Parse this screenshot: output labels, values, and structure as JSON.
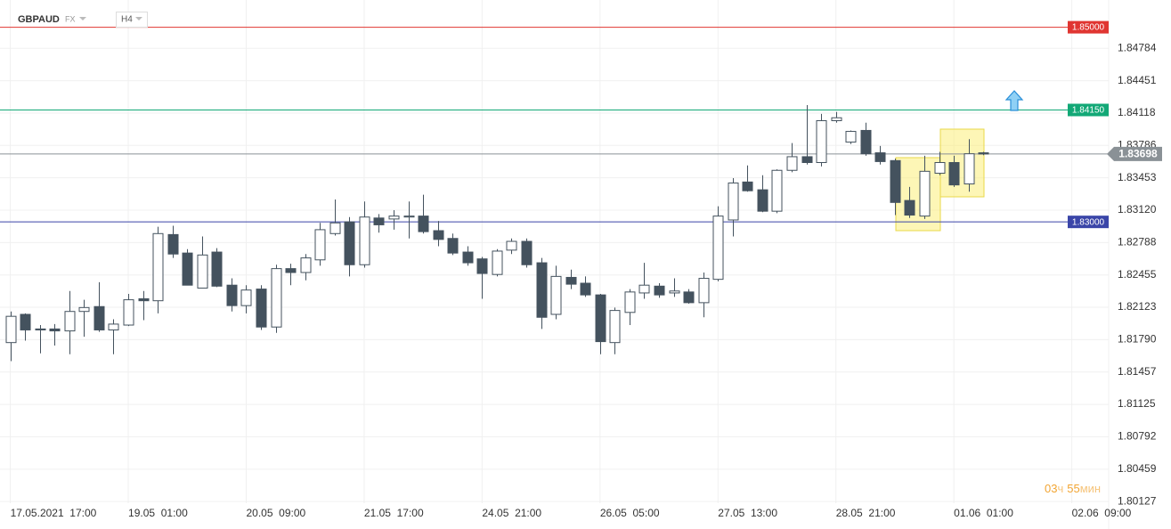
{
  "header": {
    "symbol": "GBPAUD",
    "market": "FX",
    "timeframe": "H4"
  },
  "timer": {
    "hours": "03",
    "hours_unit": "ч",
    "minutes": "55",
    "minutes_unit": "мин"
  },
  "chart_data": {
    "type": "candlestick",
    "up_color": "#ffffff",
    "down_color": "#44525e",
    "edge_color": "#44525e",
    "open": [
      1.8176,
      1.8205,
      1.819,
      1.819,
      1.8188,
      1.8208,
      1.8213,
      1.8189,
      1.8194,
      1.8221,
      1.8219,
      1.8287,
      1.8268,
      1.8232,
      1.8269,
      1.8235,
      1.8214,
      1.8231,
      1.8192,
      1.8252,
      1.8248,
      1.8261,
      1.8288,
      1.83,
      1.8256,
      1.8304,
      1.8303,
      1.8305,
      1.8306,
      1.8291,
      1.8283,
      1.8269,
      1.8262,
      1.8246,
      1.8271,
      1.828,
      1.8258,
      1.8205,
      1.8243,
      1.8237,
      1.8225,
      1.8176,
      1.8207,
      1.8227,
      1.8234,
      1.8227,
      1.8228,
      1.8217,
      1.8241,
      1.8302,
      1.8341,
      1.8333,
      1.8311,
      1.8353,
      1.8367,
      1.8361,
      1.8404,
      1.8382,
      1.8394,
      1.8371,
      1.8363,
      1.8322,
      1.8306,
      1.835,
      1.8361,
      1.8339,
      1.8371
    ],
    "high": [
      1.8208,
      1.8206,
      1.8194,
      1.8195,
      1.8229,
      1.822,
      1.8238,
      1.82,
      1.8226,
      1.8229,
      1.8295,
      1.8296,
      1.8272,
      1.8285,
      1.8273,
      1.8242,
      1.8235,
      1.8235,
      1.8256,
      1.8257,
      1.8267,
      1.8299,
      1.8323,
      1.8305,
      1.8321,
      1.8308,
      1.8312,
      1.8321,
      1.8328,
      1.8301,
      1.8288,
      1.8275,
      1.8264,
      1.8272,
      1.8283,
      1.8283,
      1.8263,
      1.8255,
      1.8251,
      1.8244,
      1.8226,
      1.8212,
      1.8231,
      1.8258,
      1.8237,
      1.8242,
      1.8231,
      1.8248,
      1.8316,
      1.8345,
      1.8358,
      1.8348,
      1.8354,
      1.8381,
      1.842,
      1.8411,
      1.8413,
      1.8394,
      1.8402,
      1.8378,
      1.8365,
      1.8336,
      1.8368,
      1.8372,
      1.8368,
      1.8385,
      1.8372
    ],
    "low": [
      1.8157,
      1.8178,
      1.8165,
      1.8173,
      1.8164,
      1.8182,
      1.8187,
      1.8164,
      1.8193,
      1.8199,
      1.8206,
      1.8263,
      1.8235,
      1.8232,
      1.8233,
      1.8208,
      1.8206,
      1.8189,
      1.8186,
      1.8235,
      1.824,
      1.8255,
      1.8286,
      1.8244,
      1.8253,
      1.8289,
      1.8292,
      1.8283,
      1.8288,
      1.8275,
      1.8266,
      1.8255,
      1.8221,
      1.8244,
      1.8267,
      1.8253,
      1.819,
      1.82,
      1.8231,
      1.8223,
      1.8164,
      1.8164,
      1.8194,
      1.8221,
      1.8222,
      1.8223,
      1.8216,
      1.8202,
      1.8239,
      1.8285,
      1.8331,
      1.831,
      1.8309,
      1.8351,
      1.8359,
      1.8357,
      1.8402,
      1.838,
      1.8368,
      1.8359,
      1.8307,
      1.8304,
      1.8303,
      1.8348,
      1.8336,
      1.8331,
      1.83685
    ],
    "close": [
      1.8203,
      1.8189,
      1.8189,
      1.8188,
      1.8208,
      1.8212,
      1.8189,
      1.8195,
      1.822,
      1.8219,
      1.8288,
      1.8267,
      1.8235,
      1.8266,
      1.8234,
      1.8214,
      1.823,
      1.8192,
      1.8252,
      1.8248,
      1.8263,
      1.8292,
      1.8299,
      1.8256,
      1.8305,
      1.8297,
      1.8306,
      1.8306,
      1.829,
      1.8282,
      1.8268,
      1.8258,
      1.8247,
      1.827,
      1.828,
      1.8256,
      1.8202,
      1.8244,
      1.8236,
      1.8225,
      1.8177,
      1.8209,
      1.8228,
      1.8235,
      1.8225,
      1.8229,
      1.8217,
      1.8242,
      1.8306,
      1.834,
      1.8332,
      1.8311,
      1.8353,
      1.8367,
      1.8361,
      1.8404,
      1.8407,
      1.8393,
      1.837,
      1.8362,
      1.832,
      1.8307,
      1.8352,
      1.8361,
      1.8338,
      1.837,
      1.83698
    ],
    "xlim": [
      -0.7,
      74.5
    ],
    "xticks": [
      {
        "value": 0,
        "label": "17.05.2021  17:00"
      },
      {
        "value": 8,
        "label": "19.05  01:00"
      },
      {
        "value": 16,
        "label": "20.05  09:00"
      },
      {
        "value": 24,
        "label": "21.05  17:00"
      },
      {
        "value": 32,
        "label": "24.05  21:00"
      },
      {
        "value": 40,
        "label": "26.05  05:00"
      },
      {
        "value": 48,
        "label": "27.05  13:00"
      },
      {
        "value": 56,
        "label": "28.05  21:00"
      },
      {
        "value": 64,
        "label": "01.06  01:00"
      },
      {
        "value": 72,
        "label": "02.06  09:00"
      }
    ],
    "ylim": [
      1.8011,
      1.8528
    ],
    "yticks": [
      1.84784,
      1.84451,
      1.84118,
      1.83786,
      1.83453,
      {
        "value": 1.8312,
        "label": "1.83120"
      },
      1.82788,
      1.82455,
      1.82123,
      {
        "value": 1.8179,
        "label": "1.81790"
      },
      1.81457,
      1.81125,
      1.80792,
      1.80459,
      1.80127
    ],
    "grid": true,
    "levels": [
      {
        "value": 1.85,
        "label": "1.85000",
        "color": "#e03531"
      },
      {
        "value": 1.8415,
        "label": "1.84150",
        "color": "#12a876"
      },
      {
        "value": 1.83,
        "label": "1.83000",
        "color": "#3a45a8"
      }
    ],
    "last_price": 1.83698,
    "last_price_color": "#8a9196"
  }
}
